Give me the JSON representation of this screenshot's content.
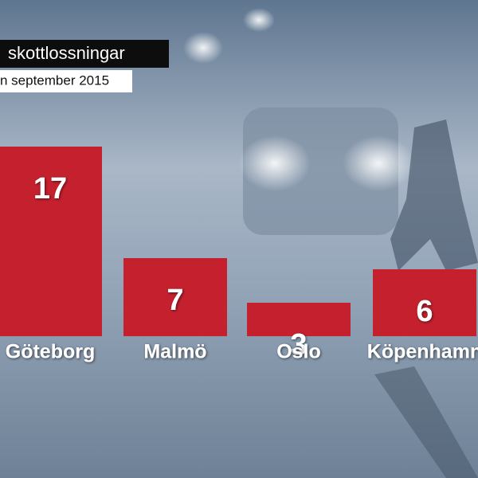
{
  "chart_data": {
    "type": "bar",
    "title": "skottlossningar",
    "subtitle": "n september 2015",
    "categories": [
      "Göteborg",
      "Malmö",
      "Oslo",
      "Köpenhamn"
    ],
    "values": [
      17,
      7,
      3,
      6
    ],
    "color": "#c5202e"
  }
}
